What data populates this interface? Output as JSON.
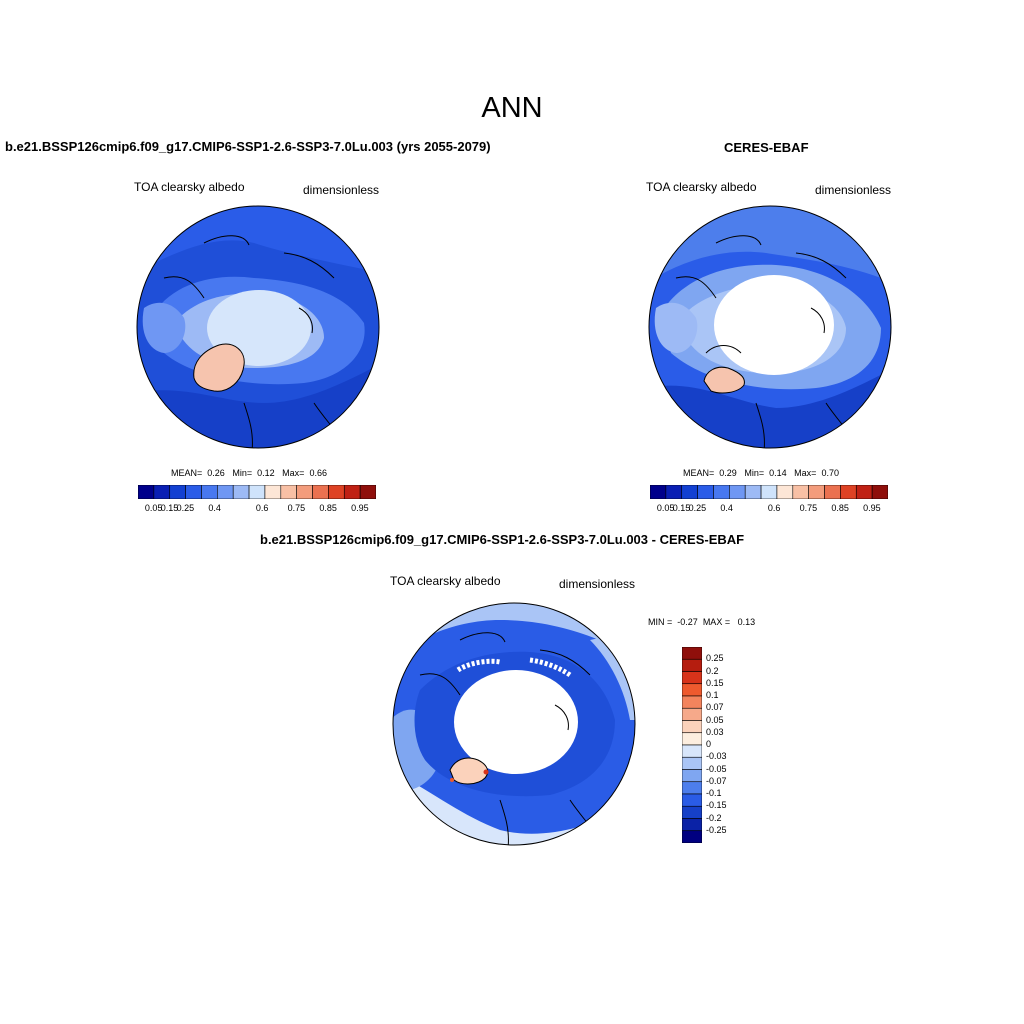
{
  "figure": {
    "title": "ANN"
  },
  "panels": [
    {
      "title": "b.e21.BSSP126cmip6.f09_g17.CMIP6-SSP1-2.6-SSP3-7.0Lu.003 (yrs 2055-2079)",
      "variable": "TOA clearsky albedo",
      "units": "dimensionless",
      "stats": {
        "mean_label": "MEAN=",
        "mean": "0.26",
        "min_label": "Min=",
        "min": "0.12",
        "max_label": "Max=",
        "max": "0.66"
      }
    },
    {
      "title": "CERES-EBAF",
      "variable": "TOA clearsky albedo",
      "units": "dimensionless",
      "stats": {
        "mean_label": "MEAN=",
        "mean": "0.29",
        "min_label": "Min=",
        "min": "0.14",
        "max_label": "Max=",
        "max": "0.70"
      }
    },
    {
      "title": "b.e21.BSSP126cmip6.f09_g17.CMIP6-SSP1-2.6-SSP3-7.0Lu.003 - CERES-EBAF",
      "variable": "TOA clearsky albedo",
      "units": "dimensionless",
      "stats": {
        "min_label": "MIN =",
        "min": "-0.27",
        "max_label": "MAX =",
        "max": "0.13"
      }
    }
  ],
  "colorbar_main": {
    "colors": [
      "#00008b",
      "#0a1fb4",
      "#1240d2",
      "#2a5ce8",
      "#4878f0",
      "#6f97f3",
      "#9dbaf5",
      "#cfe3fb",
      "#fde6d6",
      "#f8c0a5",
      "#f39c7c",
      "#eb7150",
      "#de4224",
      "#c02114",
      "#8f0f0b"
    ],
    "tick_labels": [
      "0.05",
      "0.15",
      "0.25",
      "0.4",
      "0.6",
      "0.75",
      "0.85",
      "0.95"
    ]
  },
  "colorbar_diff": {
    "colors": [
      "#8f0f0b",
      "#b51d0f",
      "#d8331a",
      "#ee5a2e",
      "#f3845d",
      "#f6a98a",
      "#fbd2bb",
      "#fdeedf",
      "#d8e6fb",
      "#aac5f6",
      "#7fa6f1",
      "#4d7eec",
      "#2a5ce6",
      "#1640c8",
      "#0a22a6",
      "#000080"
    ],
    "tick_labels": [
      "0.25",
      "0.2",
      "0.15",
      "0.1",
      "0.07",
      "0.05",
      "0.03",
      "0",
      "-0.03",
      "-0.05",
      "-0.07",
      "-0.1",
      "-0.15",
      "-0.2",
      "-0.25"
    ]
  }
}
